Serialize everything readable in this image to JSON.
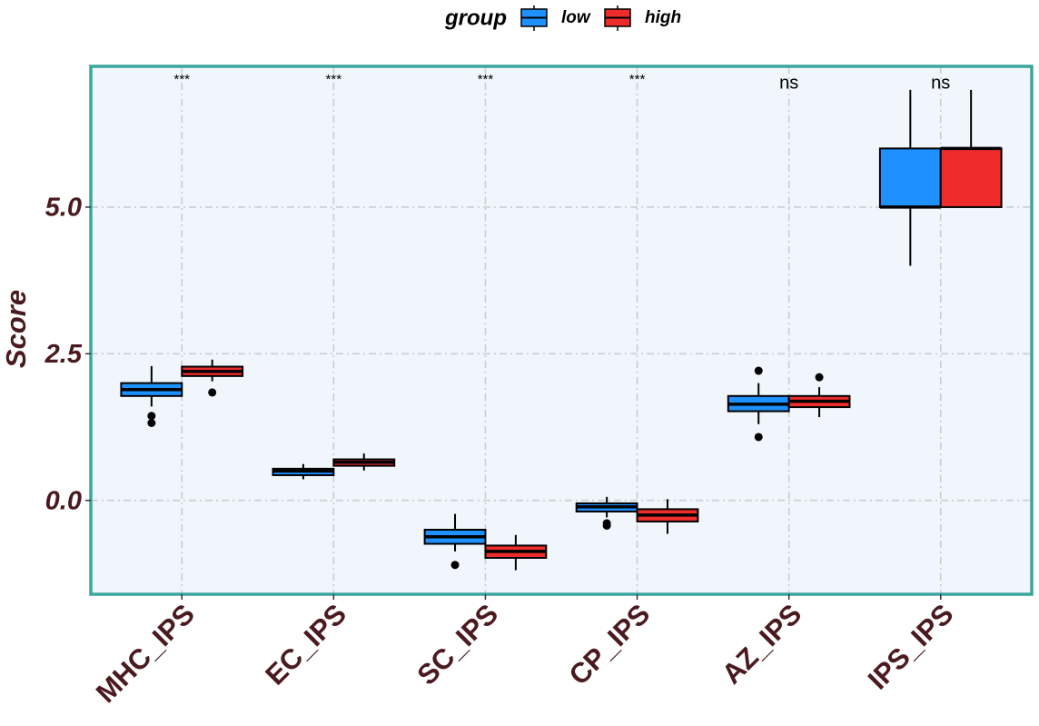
{
  "chart_data": {
    "type": "box",
    "y_label": "Score",
    "legend_title": "group",
    "legend_position": "top",
    "categories": [
      "MHC_IPS",
      "EC_IPS",
      "SC_IPS",
      "CP_IPS",
      "AZ_IPS",
      "IPS_IPS"
    ],
    "annotations": [
      "***",
      "***",
      "***",
      "***",
      "ns",
      "ns"
    ],
    "ylim": [
      -1.6,
      7.4
    ],
    "yticks": [
      {
        "value": 0,
        "label": "0.0"
      },
      2.5,
      {
        "value": 5,
        "label": "5.0"
      }
    ],
    "grid": true,
    "series": [
      {
        "name": "low",
        "color": "#1E90FF",
        "boxes": [
          {
            "whislo": 1.6,
            "q1": 1.78,
            "median": 1.89,
            "q3": 2.0,
            "whishi": 2.29,
            "fliers": [
              1.44,
              1.32
            ]
          },
          {
            "whislo": 0.36,
            "q1": 0.43,
            "median": 0.5,
            "q3": 0.54,
            "whishi": 0.62,
            "fliers": []
          },
          {
            "whislo": -0.87,
            "q1": -0.74,
            "median": -0.62,
            "q3": -0.5,
            "whishi": -0.23,
            "fliers": [
              -1.1
            ]
          },
          {
            "whislo": -0.29,
            "q1": -0.19,
            "median": -0.11,
            "q3": -0.05,
            "whishi": 0.06,
            "fliers": [
              -0.39,
              -0.43
            ]
          },
          {
            "whislo": 1.3,
            "q1": 1.52,
            "median": 1.64,
            "q3": 1.78,
            "whishi": 2.0,
            "fliers": [
              2.21,
              1.08
            ]
          },
          {
            "whislo": 4.0,
            "q1": 5.0,
            "median": 5.0,
            "q3": 6.0,
            "whishi": 7.0,
            "fliers": []
          }
        ]
      },
      {
        "name": "high",
        "color": "#EE2C2C",
        "boxes": [
          {
            "whislo": 2.03,
            "q1": 2.12,
            "median": 2.2,
            "q3": 2.28,
            "whishi": 2.4,
            "fliers": [
              1.84
            ]
          },
          {
            "whislo": 0.51,
            "q1": 0.59,
            "median": 0.65,
            "q3": 0.7,
            "whishi": 0.8,
            "fliers": []
          },
          {
            "whislo": -1.19,
            "q1": -0.98,
            "median": -0.87,
            "q3": -0.77,
            "whishi": -0.59,
            "fliers": []
          },
          {
            "whislo": -0.57,
            "q1": -0.36,
            "median": -0.25,
            "q3": -0.15,
            "whishi": 0.02,
            "fliers": []
          },
          {
            "whislo": 1.42,
            "q1": 1.59,
            "median": 1.69,
            "q3": 1.78,
            "whishi": 1.93,
            "fliers": [
              2.1
            ]
          },
          {
            "whislo": 5.0,
            "q1": 5.0,
            "median": 6.0,
            "q3": 6.0,
            "whishi": 7.0,
            "fliers": []
          }
        ]
      }
    ]
  }
}
